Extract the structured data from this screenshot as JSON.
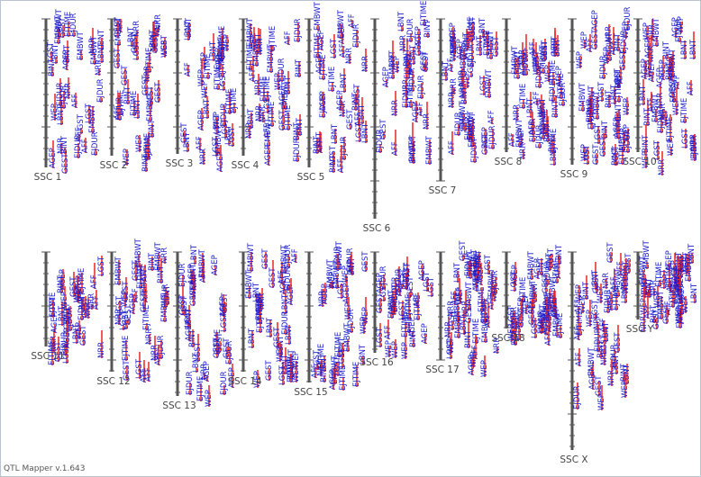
{
  "app": {
    "footer": "QTL Mapper v.1.643"
  },
  "colors": {
    "chromosome": "#555555",
    "tick": "#555555",
    "label": "#444444",
    "trait_text": "#1a1acc",
    "qtl_bar": "#ee2222",
    "marker": "#dd2222"
  },
  "chromosomes": [
    {
      "name": "SSC 1",
      "row": 0,
      "axis_length": 165
    },
    {
      "name": "SSC 2",
      "row": 0,
      "axis_length": 152
    },
    {
      "name": "SSC 3",
      "row": 0,
      "axis_length": 150
    },
    {
      "name": "SSC 4",
      "row": 0,
      "axis_length": 152
    },
    {
      "name": "SSC 5",
      "row": 0,
      "axis_length": 165
    },
    {
      "name": "SSC 6",
      "row": 0,
      "axis_length": 222
    },
    {
      "name": "SSC 7",
      "row": 0,
      "axis_length": 180
    },
    {
      "name": "SSC 8",
      "row": 0,
      "axis_length": 148
    },
    {
      "name": "SSC 9",
      "row": 0,
      "axis_length": 162
    },
    {
      "name": "SSC 10",
      "row": 0,
      "axis_length": 148
    },
    {
      "name": "SSC 11",
      "row": 1,
      "axis_length": 105
    },
    {
      "name": "SSC 12",
      "row": 1,
      "axis_length": 133
    },
    {
      "name": "SSC 13",
      "row": 1,
      "axis_length": 160
    },
    {
      "name": "SSC 14",
      "row": 1,
      "axis_length": 133
    },
    {
      "name": "SSC 15",
      "row": 1,
      "axis_length": 145
    },
    {
      "name": "SSC 16",
      "row": 1,
      "axis_length": 112
    },
    {
      "name": "SSC 17",
      "row": 1,
      "axis_length": 120
    },
    {
      "name": "SSC 18",
      "row": 1,
      "axis_length": 85
    },
    {
      "name": "SSC X",
      "row": 1,
      "axis_length": 220
    },
    {
      "name": "SSC Y",
      "row": 1,
      "axis_length": 75
    }
  ],
  "trait_labels": [
    "AGEP",
    "GEST",
    "EMBWT",
    "NRR",
    "AFF",
    "BINT",
    "LBNT",
    "EJDUR",
    "EJTIME",
    "WEP",
    "LGST"
  ]
}
